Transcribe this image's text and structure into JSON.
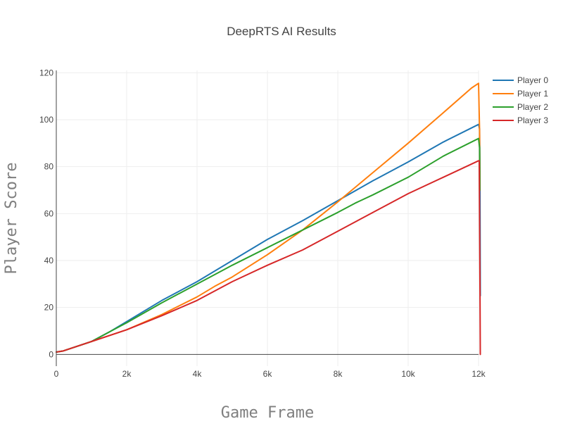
{
  "chart_data": {
    "type": "line",
    "title": "DeepRTS AI Results",
    "xlabel": "Game Frame",
    "ylabel": "Player Score",
    "xlim": [
      0,
      12000
    ],
    "ylim": [
      -5,
      121
    ],
    "xticks": [
      0,
      2000,
      4000,
      6000,
      8000,
      10000,
      12000
    ],
    "xtick_labels": [
      "0",
      "2k",
      "4k",
      "6k",
      "8k",
      "10k",
      "12k"
    ],
    "yticks": [
      0,
      20,
      40,
      60,
      80,
      100,
      120
    ],
    "ytick_labels": [
      "0",
      "20",
      "40",
      "60",
      "80",
      "100",
      "120"
    ],
    "grid": true,
    "legend_position": "top-right",
    "series": [
      {
        "name": "Player 0",
        "color": "#1f77b4",
        "x": [
          0,
          200,
          500,
          1000,
          1500,
          2000,
          3000,
          4000,
          5000,
          6000,
          7000,
          8000,
          9000,
          10000,
          11000,
          12000,
          12030,
          12040,
          12050
        ],
        "y": [
          1,
          1.5,
          3,
          5.5,
          9.5,
          14,
          23,
          31,
          40,
          49,
          57,
          65.5,
          74,
          82,
          90.5,
          98,
          96,
          75,
          25
        ]
      },
      {
        "name": "Player 1",
        "color": "#ff7f0e",
        "x": [
          0,
          200,
          500,
          1000,
          1500,
          2000,
          3000,
          4000,
          4500,
          5000,
          6000,
          7000,
          8000,
          9000,
          10000,
          11000,
          11800,
          12000,
          12030,
          12040
        ],
        "y": [
          1,
          1.5,
          3,
          5.5,
          8,
          10.5,
          17,
          24.5,
          29,
          33,
          42.5,
          53,
          65,
          77.5,
          90,
          103,
          113.5,
          115.5,
          95,
          70
        ]
      },
      {
        "name": "Player 2",
        "color": "#2ca02c",
        "x": [
          0,
          200,
          500,
          1000,
          1500,
          2000,
          3000,
          4000,
          5000,
          6000,
          7000,
          8000,
          8500,
          9000,
          10000,
          11000,
          12000,
          12030,
          12040
        ],
        "y": [
          1,
          1.5,
          3,
          5.5,
          9.5,
          13.5,
          22,
          30,
          38,
          45.5,
          53,
          60.5,
          64.5,
          68,
          75.5,
          84.5,
          92,
          88,
          70
        ]
      },
      {
        "name": "Player 3",
        "color": "#d62728",
        "x": [
          0,
          200,
          500,
          1000,
          1500,
          2000,
          3000,
          4000,
          5000,
          6000,
          7000,
          8000,
          8500,
          9000,
          10000,
          11000,
          12000,
          12020,
          12040,
          12050
        ],
        "y": [
          1,
          1.5,
          3,
          5.5,
          8,
          10.5,
          16.5,
          23,
          31,
          38,
          44.5,
          52.5,
          56.5,
          60.5,
          68.5,
          75.5,
          82.5,
          82.5,
          30,
          0
        ]
      }
    ]
  }
}
